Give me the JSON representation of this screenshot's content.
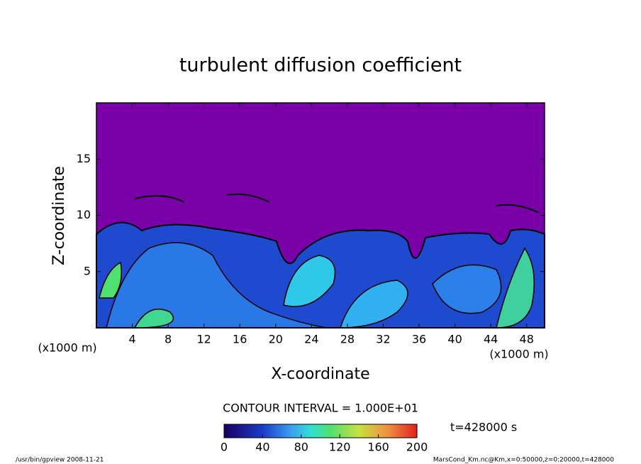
{
  "chart_data": {
    "type": "contour",
    "title": "turbulent diffusion coefficient",
    "x_label": "X-coordinate",
    "y_label": "Z-coordinate",
    "x_unit": "(x1000 m)",
    "xlim": [
      0,
      50
    ],
    "xticks": [
      4,
      8,
      12,
      16,
      20,
      24,
      28,
      32,
      36,
      40,
      44,
      48
    ],
    "ylim": [
      0,
      20
    ],
    "yticks": [
      5,
      10,
      15
    ],
    "contour_interval": "CONTOUR INTERVAL = 1.000E+01",
    "clim": [
      0,
      200
    ],
    "cticks": [
      0,
      40,
      80,
      120,
      160,
      200
    ],
    "time": "t=428000 s",
    "footer_left": "/usr/bin/gpview  2008-11-21",
    "footer_right": "MarsCond_Km.nc@Km,x=0:50000,z=0:20000,t=428000"
  }
}
